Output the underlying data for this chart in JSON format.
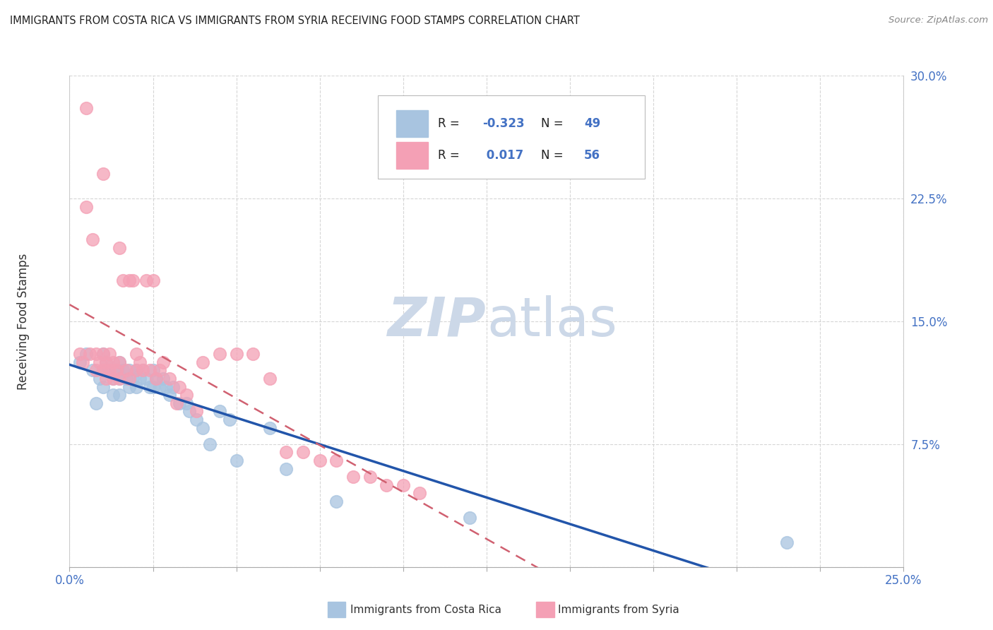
{
  "title": "IMMIGRANTS FROM COSTA RICA VS IMMIGRANTS FROM SYRIA RECEIVING FOOD STAMPS CORRELATION CHART",
  "source": "Source: ZipAtlas.com",
  "ylabel": "Receiving Food Stamps",
  "legend_label_blue": "Immigrants from Costa Rica",
  "legend_label_pink": "Immigrants from Syria",
  "xlim": [
    0.0,
    0.25
  ],
  "ylim": [
    0.0,
    0.3
  ],
  "xticks": [
    0.0,
    0.025,
    0.05,
    0.075,
    0.1,
    0.125,
    0.15,
    0.175,
    0.2,
    0.225,
    0.25
  ],
  "yticks": [
    0.0,
    0.075,
    0.15,
    0.225,
    0.3
  ],
  "color_blue": "#a8c4e0",
  "color_pink": "#f4a0b5",
  "line_color_blue": "#2255aa",
  "line_color_pink": "#d06070",
  "background_color": "#ffffff",
  "grid_color": "#cccccc",
  "watermark_color": "#ccd8e8",
  "blue_scatter_x": [
    0.003,
    0.005,
    0.007,
    0.008,
    0.009,
    0.01,
    0.01,
    0.01,
    0.011,
    0.012,
    0.013,
    0.013,
    0.014,
    0.015,
    0.015,
    0.015,
    0.016,
    0.017,
    0.018,
    0.018,
    0.019,
    0.02,
    0.02,
    0.021,
    0.022,
    0.023,
    0.024,
    0.025,
    0.025,
    0.026,
    0.027,
    0.028,
    0.029,
    0.03,
    0.031,
    0.033,
    0.035,
    0.036,
    0.038,
    0.04,
    0.042,
    0.045,
    0.048,
    0.05,
    0.06,
    0.065,
    0.08,
    0.12,
    0.215
  ],
  "blue_scatter_y": [
    0.125,
    0.13,
    0.12,
    0.1,
    0.115,
    0.13,
    0.12,
    0.11,
    0.125,
    0.12,
    0.115,
    0.105,
    0.12,
    0.125,
    0.115,
    0.105,
    0.12,
    0.115,
    0.11,
    0.12,
    0.115,
    0.12,
    0.11,
    0.115,
    0.12,
    0.115,
    0.11,
    0.12,
    0.11,
    0.115,
    0.11,
    0.115,
    0.11,
    0.105,
    0.11,
    0.1,
    0.1,
    0.095,
    0.09,
    0.085,
    0.075,
    0.095,
    0.09,
    0.065,
    0.085,
    0.06,
    0.04,
    0.03,
    0.015
  ],
  "pink_scatter_x": [
    0.003,
    0.004,
    0.005,
    0.005,
    0.006,
    0.007,
    0.008,
    0.008,
    0.009,
    0.01,
    0.01,
    0.01,
    0.011,
    0.011,
    0.012,
    0.012,
    0.013,
    0.013,
    0.014,
    0.015,
    0.015,
    0.015,
    0.016,
    0.017,
    0.018,
    0.018,
    0.019,
    0.02,
    0.02,
    0.021,
    0.022,
    0.023,
    0.024,
    0.025,
    0.026,
    0.027,
    0.028,
    0.03,
    0.032,
    0.033,
    0.035,
    0.038,
    0.04,
    0.045,
    0.05,
    0.055,
    0.06,
    0.065,
    0.07,
    0.075,
    0.08,
    0.085,
    0.09,
    0.095,
    0.1,
    0.105
  ],
  "pink_scatter_y": [
    0.13,
    0.125,
    0.28,
    0.22,
    0.13,
    0.2,
    0.13,
    0.12,
    0.125,
    0.24,
    0.13,
    0.12,
    0.125,
    0.115,
    0.13,
    0.12,
    0.125,
    0.115,
    0.12,
    0.195,
    0.125,
    0.115,
    0.175,
    0.12,
    0.175,
    0.115,
    0.175,
    0.13,
    0.12,
    0.125,
    0.12,
    0.175,
    0.12,
    0.175,
    0.115,
    0.12,
    0.125,
    0.115,
    0.1,
    0.11,
    0.105,
    0.095,
    0.125,
    0.13,
    0.13,
    0.13,
    0.115,
    0.07,
    0.07,
    0.065,
    0.065,
    0.055,
    0.055,
    0.05,
    0.05,
    0.045
  ]
}
